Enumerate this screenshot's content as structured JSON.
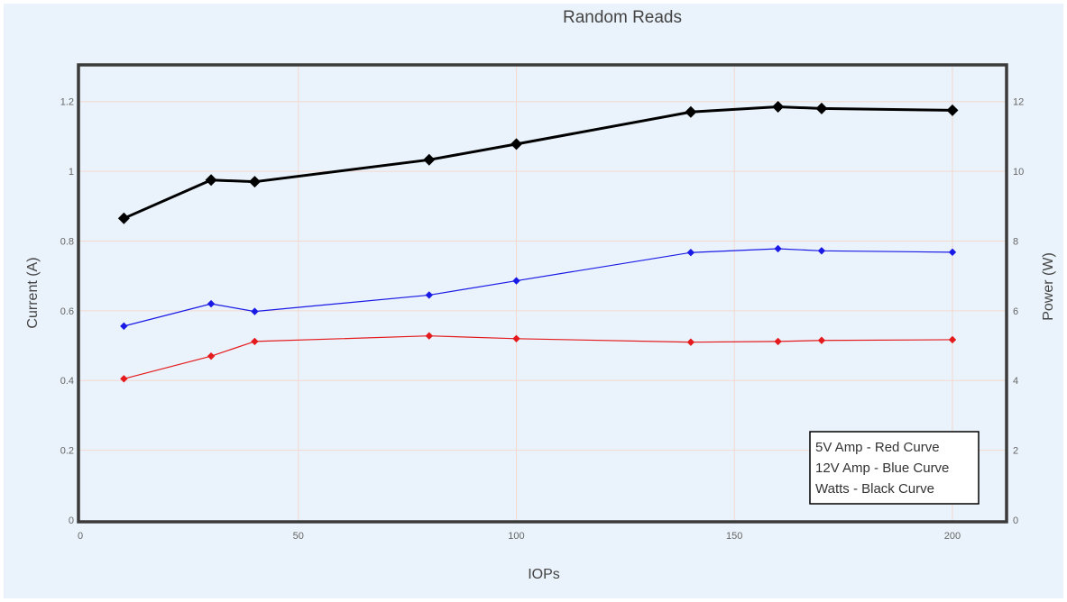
{
  "chart_data": {
    "type": "line",
    "title": "Random Reads",
    "xlabel": "IOPs",
    "ylabel": "Current (A)",
    "y2label": "Power (W)",
    "xlim": [
      0,
      212
    ],
    "ylim": [
      0,
      1.3
    ],
    "y2lim": [
      0,
      13
    ],
    "x_ticks": [
      0,
      50,
      100,
      150,
      200
    ],
    "y_ticks": [
      0,
      0.2,
      0.4,
      0.6,
      0.8,
      1,
      1.2
    ],
    "y2_ticks": [
      0,
      2,
      4,
      6,
      8,
      10,
      12
    ],
    "grid": true,
    "legend_position": "bottom-right",
    "legend": [
      "5V Amp - Red Curve",
      "12V Amp - Blue Curve",
      "Watts - Black Curve"
    ],
    "x": [
      10,
      30,
      40,
      80,
      100,
      140,
      160,
      170,
      200
    ],
    "series": [
      {
        "key": "red",
        "axis": "y",
        "color": "#e41a1c",
        "values": [
          0.405,
          0.47,
          0.512,
          0.528,
          0.52,
          0.51,
          0.512,
          0.515,
          0.517
        ]
      },
      {
        "key": "blue",
        "axis": "y",
        "color": "#1a1ae6",
        "values": [
          0.556,
          0.62,
          0.598,
          0.645,
          0.686,
          0.767,
          0.778,
          0.772,
          0.768
        ]
      },
      {
        "key": "black",
        "axis": "y2",
        "color": "#000000",
        "values": [
          8.65,
          9.75,
          9.7,
          10.33,
          10.78,
          11.7,
          11.85,
          11.8,
          11.75
        ]
      }
    ]
  }
}
